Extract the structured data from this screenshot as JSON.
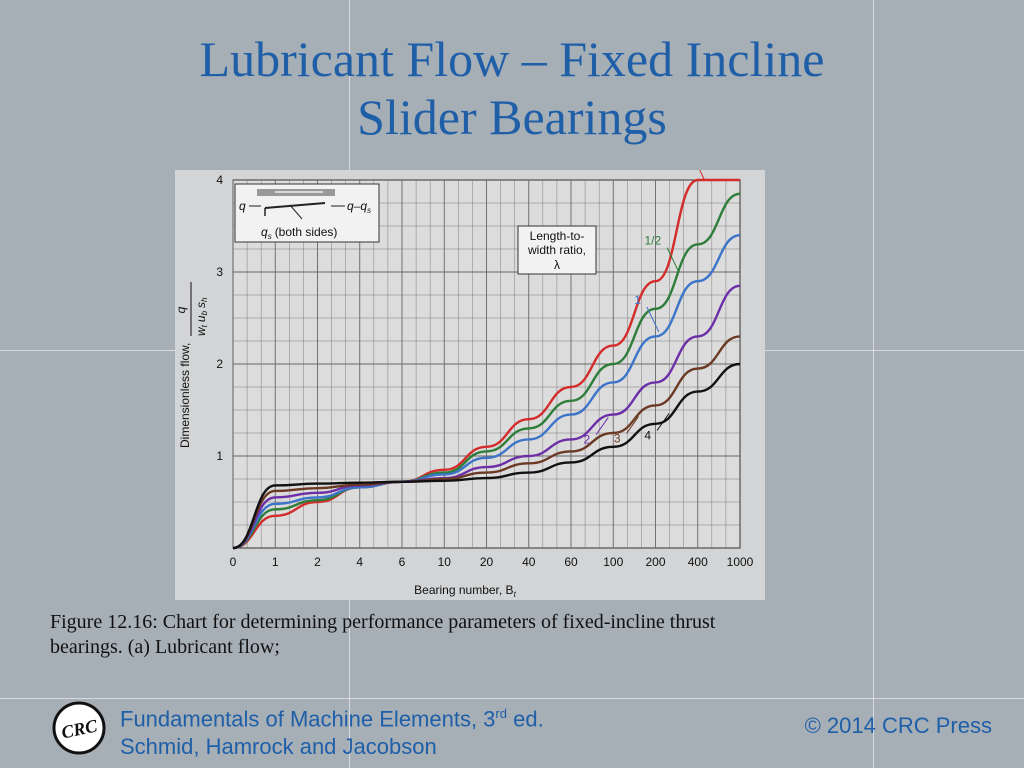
{
  "slide": {
    "title_line1": "Lubricant Flow – Fixed Incline",
    "title_line2": "Slider Bearings",
    "caption_line1": "Figure 12.16:  Chart for determining performance parameters of fixed-incline thrust",
    "caption_line2": "bearings. (a) Lubricant flow;",
    "footer_book_prefix": "Fundamentals of Machine Elements, 3",
    "footer_book_sup": "rd",
    "footer_book_suffix": " ed.",
    "footer_authors": "Schmid, Hamrock and Jacobson",
    "copyright": "© 2014 CRC Press",
    "logo_text": "CRC"
  },
  "chart_data": {
    "type": "line",
    "xlabel": "Bearing number, B",
    "xlabel_sub": "t",
    "ylabel": "Dimensionless flow,",
    "ylabel_fraction_top": "q",
    "ylabel_fraction_bottom": "w",
    "ylabel_fraction_bottom_sub": "t",
    "ylabel_fraction_mid": "u",
    "ylabel_fraction_mid_sub": "b",
    "ylabel_fraction_end": "s",
    "ylabel_fraction_end_sub": "h",
    "x_ticks": [
      "0",
      "1",
      "2",
      "4",
      "6",
      "10",
      "20",
      "40",
      "60",
      "100",
      "200",
      "400",
      "1000"
    ],
    "y_ticks": [
      "1",
      "2",
      "3",
      "4"
    ],
    "ylim": [
      0.0,
      4.0
    ],
    "inset": {
      "q_in": "q",
      "q_out": "q–q",
      "q_out_sub": "s",
      "qs": "q",
      "qs_sub": "s",
      "qs_text": "(both sides)"
    },
    "legend": {
      "line1": "Length-to-",
      "line2": "width ratio,",
      "line3": "λ"
    },
    "series": [
      {
        "name": "0",
        "color": "#d42b2b",
        "values": [
          0.0,
          0.35,
          0.5,
          0.66,
          0.72,
          0.85,
          1.1,
          1.4,
          1.75,
          2.2,
          2.9,
          4.0,
          4.0
        ]
      },
      {
        "name": "1/2",
        "color": "#2e7d3a",
        "values": [
          0.0,
          0.42,
          0.52,
          0.66,
          0.72,
          0.82,
          1.05,
          1.3,
          1.6,
          2.0,
          2.6,
          3.3,
          3.85
        ]
      },
      {
        "name": "1",
        "color": "#3c74c9",
        "values": [
          0.0,
          0.48,
          0.55,
          0.66,
          0.72,
          0.8,
          0.98,
          1.18,
          1.45,
          1.8,
          2.3,
          2.9,
          3.4
        ]
      },
      {
        "name": "2",
        "color": "#6c2fa8",
        "values": [
          0.0,
          0.55,
          0.6,
          0.68,
          0.72,
          0.76,
          0.88,
          1.0,
          1.18,
          1.45,
          1.8,
          2.3,
          2.85
        ]
      },
      {
        "name": "3",
        "color": "#6b3a24",
        "values": [
          0.0,
          0.62,
          0.65,
          0.69,
          0.72,
          0.75,
          0.82,
          0.92,
          1.05,
          1.25,
          1.55,
          1.95,
          2.3
        ]
      },
      {
        "name": "4",
        "color": "#111111",
        "values": [
          0.0,
          0.68,
          0.7,
          0.71,
          0.72,
          0.73,
          0.76,
          0.82,
          0.93,
          1.1,
          1.35,
          1.7,
          2.0
        ]
      }
    ]
  }
}
